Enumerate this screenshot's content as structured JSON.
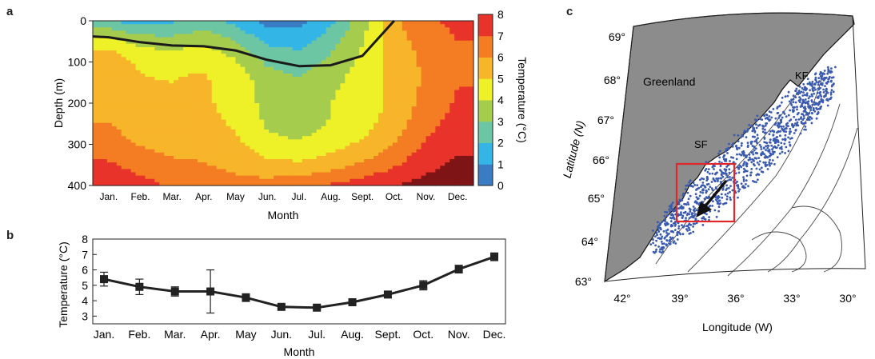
{
  "panels": {
    "a": "a",
    "b": "b",
    "c": "c"
  },
  "chart_data": [
    {
      "type": "heatmap",
      "panel": "a",
      "xlabel": "Month",
      "ylabel": "Depth (m)",
      "colorbar_label": "Temperature (°C)",
      "x_categories": [
        "Jan.",
        "Feb.",
        "Mar.",
        "Apr.",
        "May",
        "Jun.",
        "Jul.",
        "Aug.",
        "Sept.",
        "Oct.",
        "Nov.",
        "Dec."
      ],
      "y_ticks": [
        0,
        100,
        200,
        300,
        400
      ],
      "ylim": [
        400,
        0
      ],
      "colorbar_ticks": [
        0,
        1,
        2,
        3,
        4,
        5,
        6,
        7,
        8
      ],
      "colorbar_colors": [
        "#2b3990",
        "#2f56a8",
        "#3a7cc4",
        "#33b6e6",
        "#6cc6a4",
        "#a6cc4e",
        "#eef028",
        "#f7b52a",
        "#f47c23",
        "#e8332a",
        "#a51c22"
      ],
      "colorbar_max_color": "#7f1416",
      "mixed_layer_depth_m": [
        40,
        52,
        60,
        62,
        72,
        95,
        110,
        108,
        85,
        0,
        null,
        null
      ]
    },
    {
      "type": "line",
      "panel": "b",
      "xlabel": "Month",
      "ylabel": "Temperature (°C)",
      "categories": [
        "Jan.",
        "Feb.",
        "Mar.",
        "Apr.",
        "May",
        "Jun.",
        "Jul.",
        "Aug.",
        "Sept.",
        "Oct.",
        "Nov.",
        "Dec."
      ],
      "values": [
        5.4,
        4.9,
        4.6,
        4.6,
        4.2,
        3.6,
        3.55,
        3.9,
        4.4,
        5.0,
        6.05,
        6.85
      ],
      "err_low": [
        4.95,
        4.4,
        4.3,
        3.2,
        3.95,
        3.5,
        3.4,
        3.75,
        4.2,
        4.7,
        5.8,
        6.6
      ],
      "err_high": [
        5.85,
        5.4,
        4.9,
        6.0,
        4.45,
        3.75,
        3.7,
        4.05,
        4.6,
        5.3,
        6.3,
        7.1
      ],
      "y_ticks": [
        3,
        4,
        5,
        6,
        7,
        8
      ],
      "ylim": [
        2.5,
        8
      ]
    },
    {
      "type": "scatter",
      "panel": "c",
      "xlabel": "Longitude (W)",
      "ylabel": "Latitude (N)",
      "lon_ticks": [
        "42°",
        "39°",
        "36°",
        "33°",
        "30°"
      ],
      "lat_ticks": [
        "63°",
        "64°",
        "65°",
        "66°",
        "67°",
        "68°",
        "69°"
      ],
      "labels": {
        "greenland": "Greenland",
        "kf": "KF",
        "sf": "SF"
      },
      "land_color": "#8c8c8c",
      "point_color": "#3a5ab0",
      "box_color": "#e0262b"
    }
  ]
}
